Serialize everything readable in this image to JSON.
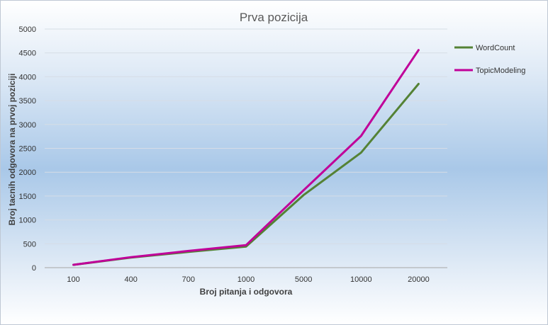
{
  "chart_data": {
    "type": "line",
    "title": "Prva pozicija",
    "xlabel": "Broj pitanja  i odgovora",
    "ylabel": "Broj tacnih odgovora  na prvoj poziciji",
    "categories": [
      "100",
      "400",
      "700",
      "1000",
      "5000",
      "10000",
      "20000"
    ],
    "ylim": [
      0,
      5000
    ],
    "yticks": [
      "0",
      "500",
      "1000",
      "1500",
      "2000",
      "2500",
      "3000",
      "3500",
      "4000",
      "4500",
      "5000"
    ],
    "grid": true,
    "legend_position": "right",
    "series": [
      {
        "name": "WordCount",
        "color": "#548235",
        "values": [
          60,
          210,
          330,
          440,
          1520,
          2410,
          3850
        ]
      },
      {
        "name": "TopicModeling",
        "color": "#c00099",
        "values": [
          60,
          220,
          350,
          470,
          1620,
          2760,
          4560
        ]
      }
    ]
  }
}
